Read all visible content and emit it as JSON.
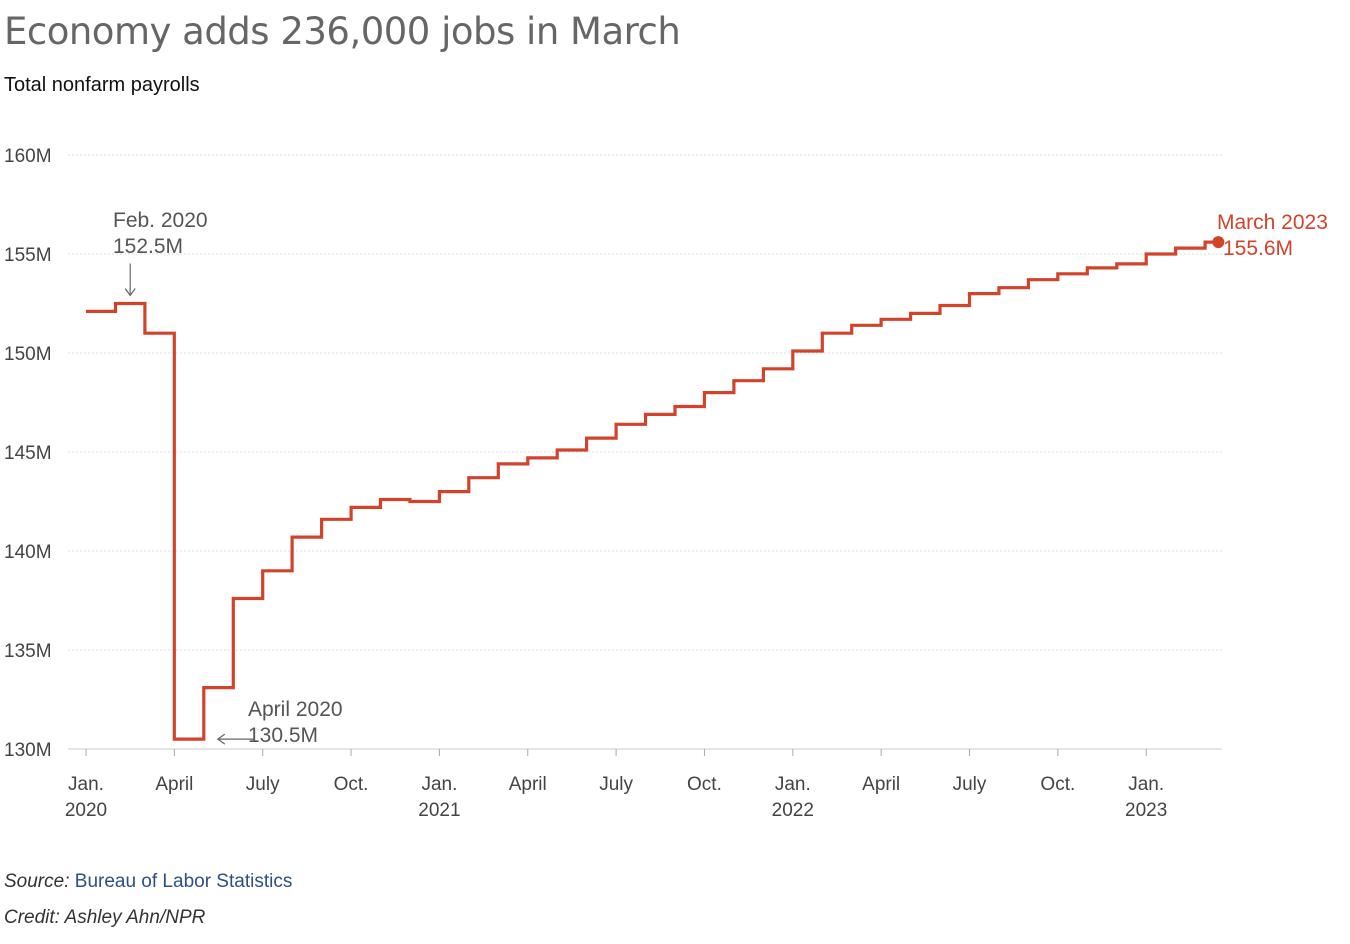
{
  "title": "Economy adds 236,000 jobs in March",
  "subtitle": "Total nonfarm payrolls",
  "source_label": "Source:",
  "source_value": "Bureau of Labor Statistics",
  "credit": "Credit: Ashley Ahn/NPR",
  "colors": {
    "line": "#d2432c",
    "text": "#444444",
    "grid": "#dddddd"
  },
  "chart_data": {
    "type": "line",
    "step": true,
    "ylim": [
      130,
      160
    ],
    "yticks": [
      {
        "value": 130,
        "label": "130M"
      },
      {
        "value": 135,
        "label": "135M"
      },
      {
        "value": 140,
        "label": "140M"
      },
      {
        "value": 145,
        "label": "145M"
      },
      {
        "value": 150,
        "label": "150M"
      },
      {
        "value": 155,
        "label": "155M"
      },
      {
        "value": 160,
        "label": "160M"
      }
    ],
    "xticks": [
      {
        "month": "2020-01",
        "label": "Jan.",
        "year": "2020"
      },
      {
        "month": "2020-04",
        "label": "April",
        "year": ""
      },
      {
        "month": "2020-07",
        "label": "July",
        "year": ""
      },
      {
        "month": "2020-10",
        "label": "Oct.",
        "year": ""
      },
      {
        "month": "2021-01",
        "label": "Jan.",
        "year": "2021"
      },
      {
        "month": "2021-04",
        "label": "April",
        "year": ""
      },
      {
        "month": "2021-07",
        "label": "July",
        "year": ""
      },
      {
        "month": "2021-10",
        "label": "Oct.",
        "year": ""
      },
      {
        "month": "2022-01",
        "label": "Jan.",
        "year": "2022"
      },
      {
        "month": "2022-04",
        "label": "April",
        "year": ""
      },
      {
        "month": "2022-07",
        "label": "July",
        "year": ""
      },
      {
        "month": "2022-10",
        "label": "Oct.",
        "year": ""
      },
      {
        "month": "2023-01",
        "label": "Jan.",
        "year": "2023"
      }
    ],
    "x": [
      "2020-01",
      "2020-02",
      "2020-03",
      "2020-04",
      "2020-05",
      "2020-06",
      "2020-07",
      "2020-08",
      "2020-09",
      "2020-10",
      "2020-11",
      "2020-12",
      "2021-01",
      "2021-02",
      "2021-03",
      "2021-04",
      "2021-05",
      "2021-06",
      "2021-07",
      "2021-08",
      "2021-09",
      "2021-10",
      "2021-11",
      "2021-12",
      "2022-01",
      "2022-02",
      "2022-03",
      "2022-04",
      "2022-05",
      "2022-06",
      "2022-07",
      "2022-08",
      "2022-09",
      "2022-10",
      "2022-11",
      "2022-12",
      "2023-01",
      "2023-02",
      "2023-03"
    ],
    "values": [
      152.1,
      152.5,
      151.0,
      130.5,
      133.1,
      137.6,
      139.0,
      140.7,
      141.6,
      142.2,
      142.6,
      142.5,
      143.0,
      143.7,
      144.4,
      144.7,
      145.1,
      145.7,
      146.4,
      146.9,
      147.3,
      148.0,
      148.6,
      149.2,
      150.1,
      151.0,
      151.4,
      151.7,
      152.0,
      152.4,
      153.0,
      153.3,
      153.7,
      154.0,
      154.3,
      154.5,
      155.0,
      155.3,
      155.6
    ],
    "annotations": [
      {
        "name": "feb-2020",
        "label": "Feb. 2020",
        "value": "152.5M",
        "index": 1
      },
      {
        "name": "april-2020",
        "label": "April 2020",
        "value": "130.5M",
        "index": 3
      },
      {
        "name": "march-2023",
        "label": "March 2023",
        "value": "155.6M",
        "index": 38
      }
    ]
  }
}
